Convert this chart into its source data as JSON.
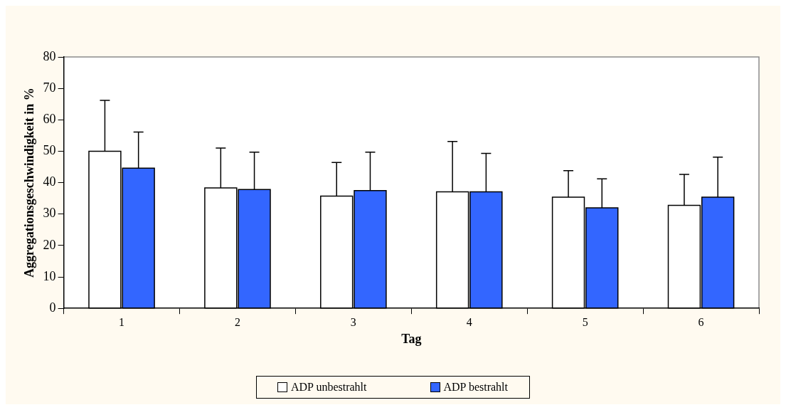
{
  "chart_data": {
    "type": "bar",
    "xlabel": "Tag",
    "ylabel": "Aggregationsgeschwindigkeit in %",
    "categories": [
      "1",
      "2",
      "3",
      "4",
      "5",
      "6"
    ],
    "series": [
      {
        "name": "ADP unbestrahlt",
        "color": "#ffffff",
        "values": [
          50,
          38.3,
          35.7,
          37.1,
          35.4,
          32.8
        ],
        "errors": [
          [
            50,
            66.2
          ],
          [
            38.3,
            51
          ],
          [
            35.7,
            46.4
          ],
          [
            37.1,
            53.1
          ],
          [
            35.4,
            43.8
          ],
          [
            32.8,
            42.6
          ]
        ]
      },
      {
        "name": "ADP bestrahlt",
        "color": "#3366ff",
        "values": [
          44.6,
          37.8,
          37.5,
          37.1,
          32,
          35.4
        ],
        "errors": [
          [
            44.6,
            56.1
          ],
          [
            37.8,
            49.7
          ],
          [
            37.5,
            49.7
          ],
          [
            37.1,
            49.3
          ],
          [
            32,
            41.2
          ],
          [
            35.4,
            48.1
          ]
        ]
      }
    ],
    "ylim": [
      0,
      80
    ],
    "yticks": [
      0,
      10,
      20,
      30,
      40,
      50,
      60,
      70,
      80
    ],
    "grid": false,
    "legend": "bottom"
  }
}
